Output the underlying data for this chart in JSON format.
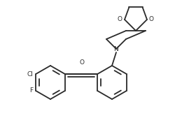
{
  "bg_color": "#ffffff",
  "line_color": "#2a2a2a",
  "line_width": 1.3,
  "text_color": "#2a2a2a",
  "font_size": 6.5,
  "figsize": [
    2.7,
    1.79
  ],
  "dpi": 100,
  "atoms": {
    "Cl": "Cl",
    "F": "F",
    "O_carbonyl": "O",
    "N": "N",
    "O1": "O",
    "O2": "O"
  }
}
